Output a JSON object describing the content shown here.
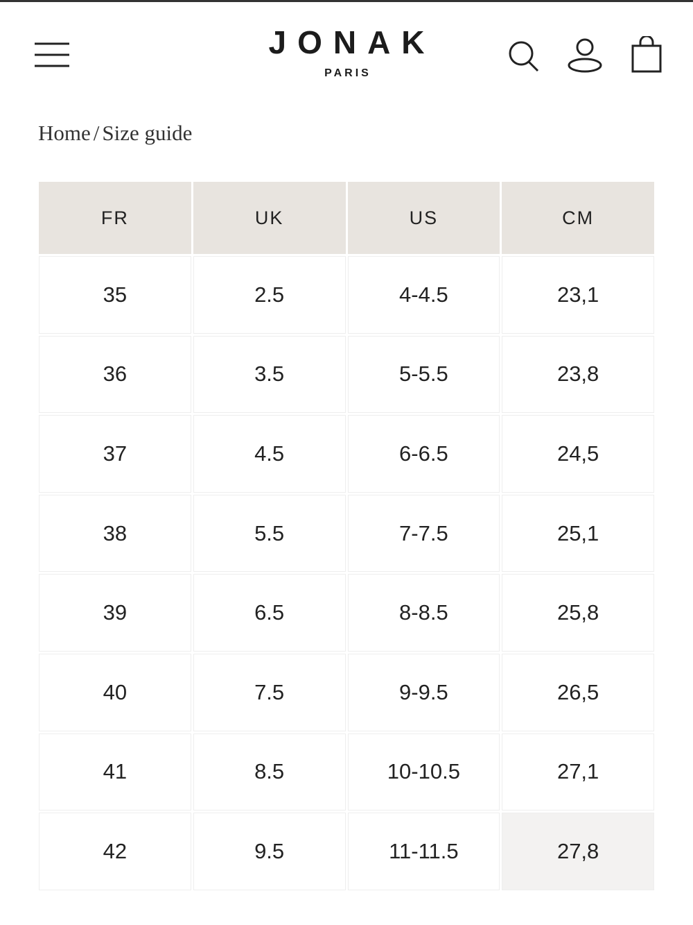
{
  "header": {
    "logo": "JONAK",
    "tagline": "PARIS"
  },
  "breadcrumb": {
    "home": "Home",
    "separator": "/",
    "current": "Size guide"
  },
  "table": {
    "columns": [
      "FR",
      "UK",
      "US",
      "CM"
    ],
    "rows": [
      [
        "35",
        "2.5",
        "4-4.5",
        "23,1"
      ],
      [
        "36",
        "3.5",
        "5-5.5",
        "23,8"
      ],
      [
        "37",
        "4.5",
        "6-6.5",
        "24,5"
      ],
      [
        "38",
        "5.5",
        "7-7.5",
        "25,1"
      ],
      [
        "39",
        "6.5",
        "8-8.5",
        "25,8"
      ],
      [
        "40",
        "7.5",
        "9-9.5",
        "26,5"
      ],
      [
        "41",
        "8.5",
        "10-10.5",
        "27,1"
      ],
      [
        "42",
        "9.5",
        "11-11.5",
        "27,8"
      ]
    ]
  }
}
